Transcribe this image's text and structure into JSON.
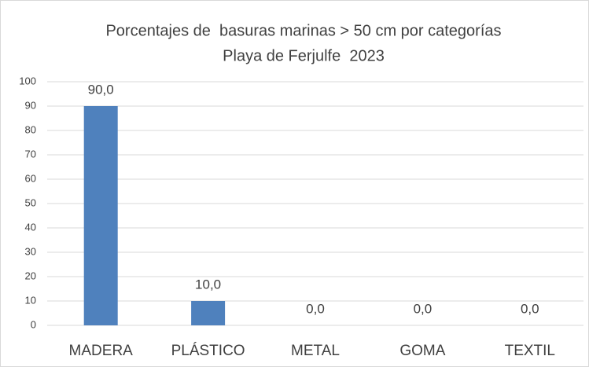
{
  "chart_data": {
    "type": "bar",
    "title": "Porcentajes de  basuras marinas > 50 cm por categorías",
    "subtitle": "Playa de Ferjulfe  2023",
    "categories": [
      "MADERA",
      "PLÁSTICO",
      "METAL",
      "GOMA",
      "TEXTIL"
    ],
    "values": [
      90,
      10,
      0,
      0,
      0
    ],
    "value_labels": [
      "90,0",
      "10,0",
      "0,0",
      "0,0",
      "0,0"
    ],
    "color": "#4f81bd",
    "ylim": [
      0,
      100
    ],
    "yticks": [
      0,
      10,
      20,
      30,
      40,
      50,
      60,
      70,
      80,
      90,
      100
    ],
    "grid": true
  }
}
